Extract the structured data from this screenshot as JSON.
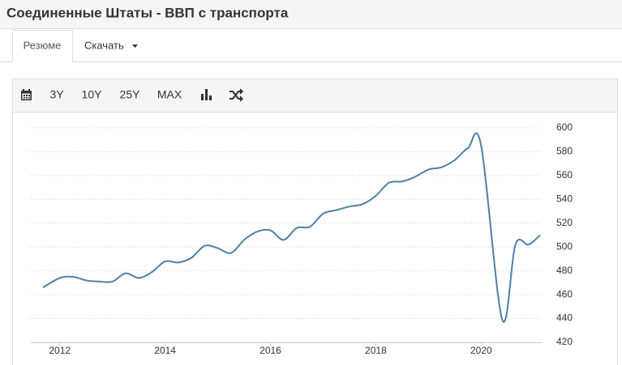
{
  "header": {
    "title": "Соединенные Штаты - ВВП с транспорта"
  },
  "tabs": [
    "Резюме",
    "Скачать"
  ],
  "toolbar": [
    "3Y",
    "10Y",
    "25Y",
    "MAX"
  ],
  "chart_data": {
    "type": "line",
    "x": [
      2011.68,
      2012.0,
      2012.25,
      2012.5,
      2012.75,
      2013.0,
      2013.25,
      2013.5,
      2013.75,
      2014.0,
      2014.25,
      2014.5,
      2014.75,
      2015.0,
      2015.25,
      2015.5,
      2015.75,
      2016.0,
      2016.25,
      2016.5,
      2016.75,
      2017.0,
      2017.25,
      2017.5,
      2017.75,
      2018.0,
      2018.25,
      2018.5,
      2018.75,
      2019.0,
      2019.25,
      2019.5,
      2019.75,
      2020.0,
      2020.4,
      2020.65,
      2020.9,
      2021.12
    ],
    "series": [
      {
        "name": "ВВП с транспорта",
        "color": "#4f7fa8",
        "values": [
          466,
          474,
          475,
          472,
          471,
          471,
          478,
          474,
          479,
          488,
          487,
          491,
          501,
          499,
          495,
          506,
          513,
          514,
          506,
          516,
          517,
          528,
          531,
          534,
          536,
          543,
          554,
          555,
          559,
          565,
          567,
          573,
          583,
          585,
          439,
          502,
          502,
          510
        ]
      }
    ],
    "xlim": [
      2011.45,
      2021.15
    ],
    "xticks": [
      2012,
      2014,
      2016,
      2018,
      2020
    ],
    "ylim": [
      420,
      600
    ],
    "yticks": [
      420,
      440,
      460,
      480,
      500,
      520,
      540,
      560,
      580,
      600
    ],
    "grid": true
  }
}
